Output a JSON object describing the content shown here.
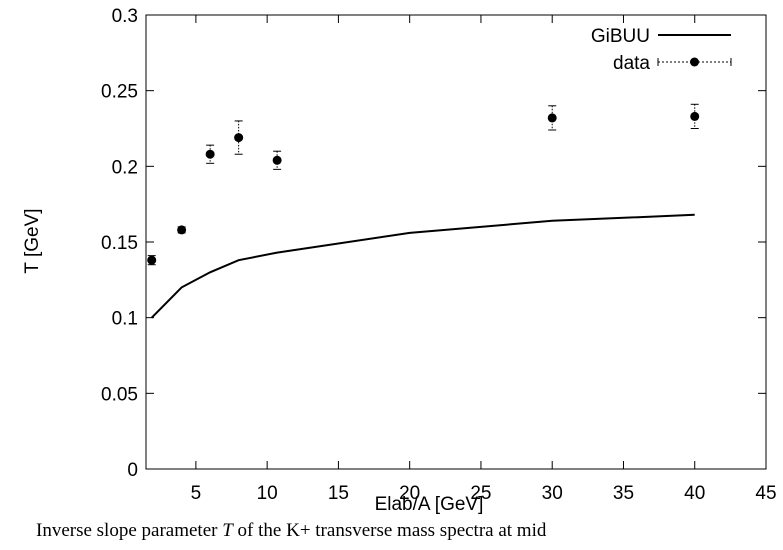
{
  "chart_data": {
    "type": "line",
    "xlabel": "Elab/A [GeV]",
    "ylabel": "T [GeV]",
    "xlim": [
      1.5,
      45
    ],
    "ylim": [
      0,
      0.3
    ],
    "xticks": [
      "5",
      "10",
      "15",
      "20",
      "25",
      "30",
      "35",
      "40",
      "45"
    ],
    "yticks": [
      "0",
      "0.05",
      "0.1",
      "0.15",
      "0.2",
      "0.25",
      "0.3"
    ],
    "grid": false,
    "legend_position": "top-right",
    "series": [
      {
        "name": "GiBUU",
        "style": "line",
        "color": "#000000",
        "x": [
          1.9,
          4,
          6,
          8,
          10.7,
          20,
          30,
          40
        ],
        "y": [
          0.1,
          0.12,
          0.13,
          0.138,
          0.143,
          0.156,
          0.164,
          0.168
        ]
      },
      {
        "name": "data",
        "style": "points-with-errorbars",
        "color": "#000000",
        "x": [
          1.9,
          4,
          6,
          8,
          10.7,
          30,
          40
        ],
        "y": [
          0.138,
          0.158,
          0.208,
          0.219,
          0.204,
          0.232,
          0.233
        ],
        "yerr": [
          0.003,
          0.002,
          0.006,
          0.011,
          0.006,
          0.008,
          0.008
        ]
      }
    ]
  },
  "caption": {
    "part1": "Inverse slope parameter ",
    "var": "T",
    "part2": " of the ",
    "part3": "K+ transverse mass spectra at mid"
  }
}
